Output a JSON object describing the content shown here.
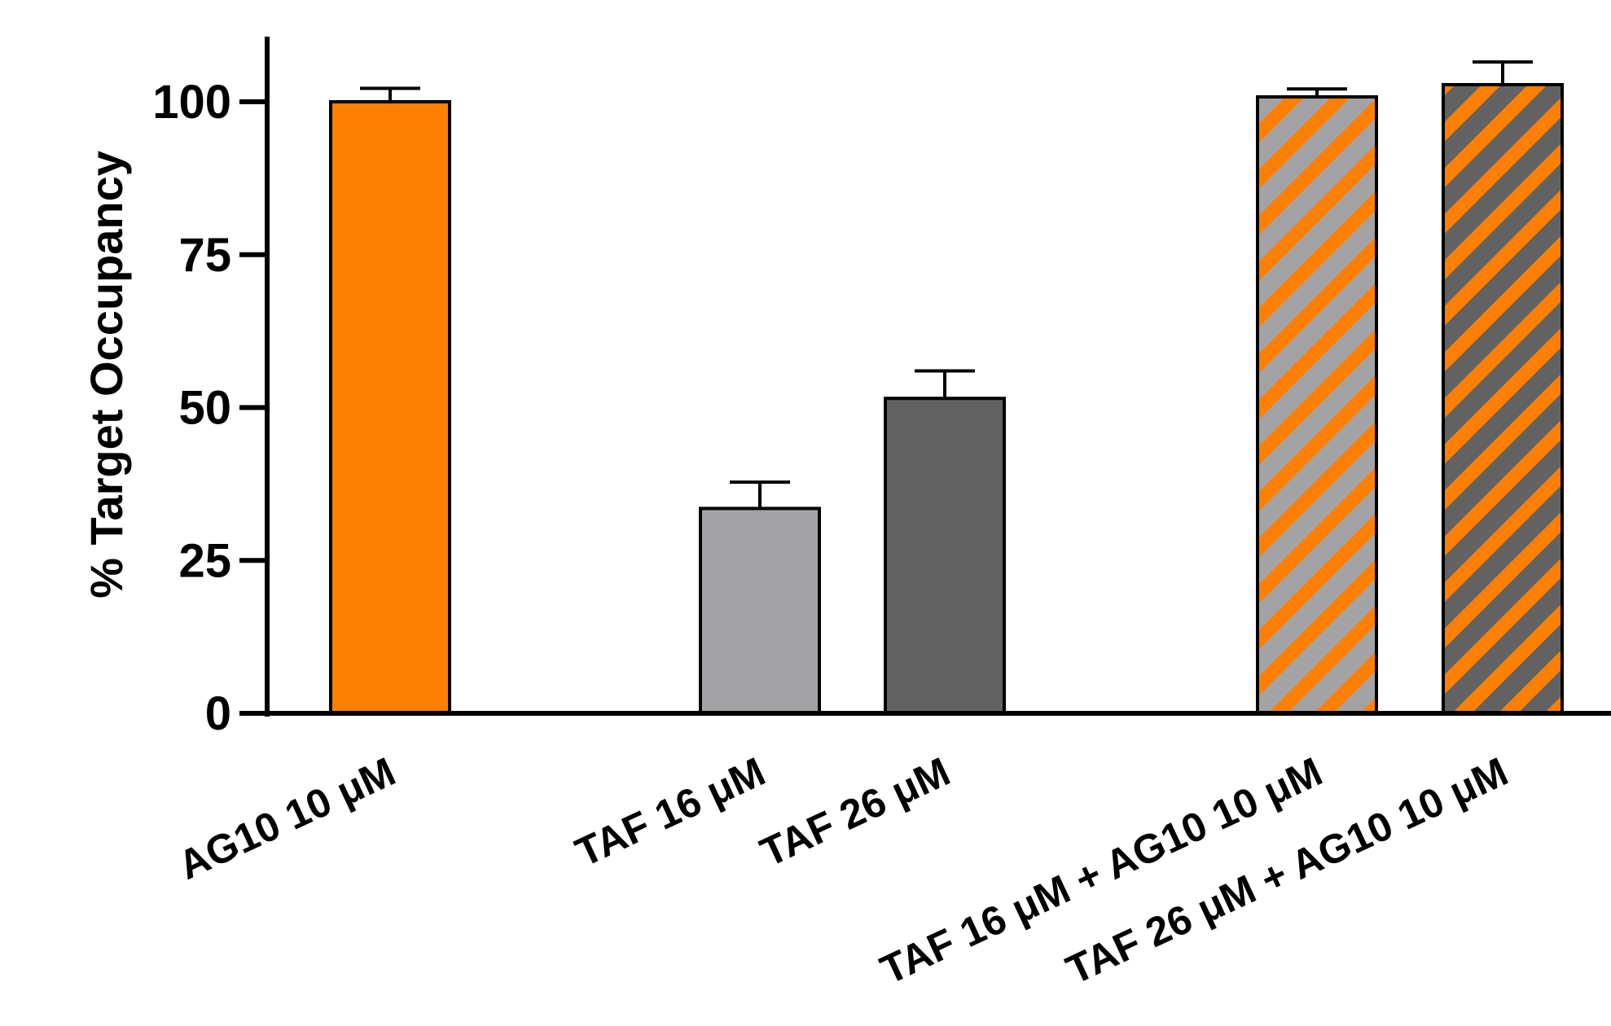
{
  "chart_data": {
    "type": "bar",
    "title": "",
    "xlabel": "",
    "ylabel": "% Target Occupancy",
    "ylim": [
      0,
      110
    ],
    "yticks": [
      0,
      25,
      50,
      75,
      100
    ],
    "categories": [
      "AG10 10 μM",
      "TAF 16 μM",
      "TAF 26 μM",
      "TAF 16 μM + AG10 10 μM",
      "TAF 26 μM + AG10 10 μM"
    ],
    "values": [
      100,
      33.5,
      51.5,
      100.8,
      102.8
    ],
    "error_plus": [
      2.2,
      4.3,
      4.5,
      1.3,
      3.7
    ],
    "fills": [
      "solid-orange",
      "solid-light-gray",
      "solid-dark-gray",
      "hatched-orange-light-gray",
      "hatched-orange-dark-gray"
    ],
    "grid": false,
    "legend": "none"
  },
  "colors": {
    "orange": "#FF8000",
    "light_gray": "#A3A3A6",
    "dark_gray": "#626262",
    "axis": "#000000"
  }
}
